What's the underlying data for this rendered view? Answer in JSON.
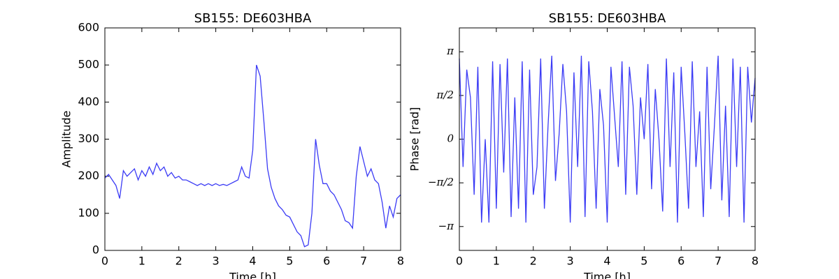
{
  "chart_data": [
    {
      "type": "line",
      "title": "SB155: DE603HBA",
      "xlabel": "Time [h]",
      "ylabel": "Amplitude",
      "xlim": [
        0,
        8
      ],
      "xticks": [
        0,
        1,
        2,
        3,
        4,
        5,
        6,
        7,
        8
      ],
      "ylim": [
        0,
        600
      ],
      "yticks": [
        0,
        100,
        200,
        300,
        400,
        500,
        600
      ],
      "series": [
        {
          "color": "#3b3bf5",
          "x": [
            0,
            0.1,
            0.2,
            0.3,
            0.4,
            0.5,
            0.6,
            0.7,
            0.8,
            0.9,
            1,
            1.1,
            1.2,
            1.3,
            1.4,
            1.5,
            1.6,
            1.7,
            1.8,
            1.9,
            2,
            2.1,
            2.2,
            2.3,
            2.4,
            2.5,
            2.6,
            2.7,
            2.8,
            2.9,
            3,
            3.1,
            3.2,
            3.3,
            3.4,
            3.5,
            3.6,
            3.7,
            3.8,
            3.9,
            4,
            4.1,
            4.2,
            4.3,
            4.4,
            4.5,
            4.6,
            4.7,
            4.8,
            4.9,
            5,
            5.1,
            5.2,
            5.3,
            5.4,
            5.5,
            5.6,
            5.7,
            5.8,
            5.9,
            6,
            6.1,
            6.2,
            6.3,
            6.4,
            6.5,
            6.6,
            6.7,
            6.8,
            6.9,
            7,
            7.1,
            7.2,
            7.3,
            7.4,
            7.5,
            7.6,
            7.7,
            7.8,
            7.9,
            8
          ],
          "values": [
            195,
            205,
            190,
            175,
            140,
            215,
            200,
            210,
            220,
            190,
            215,
            200,
            225,
            205,
            235,
            215,
            225,
            200,
            210,
            195,
            200,
            190,
            190,
            185,
            180,
            175,
            180,
            175,
            180,
            175,
            180,
            175,
            178,
            175,
            180,
            185,
            190,
            225,
            200,
            195,
            270,
            500,
            470,
            350,
            220,
            170,
            140,
            120,
            110,
            95,
            90,
            70,
            50,
            40,
            10,
            15,
            100,
            300,
            230,
            180,
            180,
            160,
            150,
            130,
            110,
            80,
            75,
            60,
            200,
            280,
            240,
            200,
            220,
            190,
            180,
            130,
            60,
            120,
            90,
            140,
            150
          ]
        }
      ]
    },
    {
      "type": "line",
      "title": "SB155: DE603HBA",
      "xlabel": "Time [h]",
      "ylabel": "Phase [rad]",
      "xlim": [
        0,
        8
      ],
      "xticks": [
        0,
        1,
        2,
        3,
        4,
        5,
        6,
        7,
        8
      ],
      "ylim": [
        -4,
        4
      ],
      "yticks": [
        {
          "value": -3.14159,
          "label": "−π"
        },
        {
          "value": -1.5708,
          "label": "−π/2"
        },
        0,
        {
          "value": 1.5708,
          "label": "π/2"
        },
        {
          "value": 3.14159,
          "label": "π"
        }
      ],
      "series": [
        {
          "color": "#3b3bf5",
          "x": [
            0,
            0.1,
            0.2,
            0.3,
            0.4,
            0.5,
            0.6,
            0.7,
            0.8,
            0.9,
            1,
            1.1,
            1.2,
            1.3,
            1.4,
            1.5,
            1.6,
            1.7,
            1.8,
            1.9,
            2,
            2.1,
            2.2,
            2.3,
            2.4,
            2.5,
            2.6,
            2.7,
            2.8,
            2.9,
            3,
            3.1,
            3.2,
            3.3,
            3.4,
            3.5,
            3.6,
            3.7,
            3.8,
            3.9,
            4,
            4.1,
            4.2,
            4.3,
            4.4,
            4.5,
            4.6,
            4.7,
            4.8,
            4.9,
            5,
            5.1,
            5.2,
            5.3,
            5.4,
            5.5,
            5.6,
            5.7,
            5.8,
            5.9,
            6,
            6.1,
            6.2,
            6.3,
            6.4,
            6.5,
            6.6,
            6.7,
            6.8,
            6.9,
            7,
            7.1,
            7.2,
            7.3,
            7.4,
            7.5,
            7.6,
            7.7,
            7.8,
            7.9,
            8
          ],
          "values": [
            2.9,
            -1.0,
            2.5,
            1.5,
            -2.0,
            2.6,
            -3.0,
            0.0,
            -3.0,
            2.8,
            -2.5,
            2.7,
            -1.2,
            2.9,
            -2.8,
            1.5,
            -2.5,
            2.8,
            -3.0,
            2.5,
            -2.0,
            -1.0,
            2.9,
            -2.5,
            0.5,
            3.0,
            -1.5,
            0.2,
            2.7,
            1.0,
            -3.0,
            2.4,
            -1.0,
            3.0,
            -2.8,
            2.8,
            1.0,
            -2.5,
            1.8,
            0.5,
            -3.0,
            2.6,
            0.8,
            -1.0,
            2.8,
            -2.0,
            2.6,
            1.2,
            -2.0,
            1.5,
            0.0,
            2.7,
            -1.8,
            1.8,
            0.0,
            -2.6,
            2.9,
            -1.0,
            2.4,
            -3.0,
            2.6,
            0.2,
            -2.5,
            2.8,
            -1.0,
            1.0,
            -2.8,
            2.6,
            -1.8,
            0.5,
            3.0,
            -2.2,
            1.2,
            -2.8,
            2.9,
            -1.0,
            2.6,
            -3.0,
            2.6,
            0.6,
            2.2
          ]
        }
      ]
    }
  ]
}
